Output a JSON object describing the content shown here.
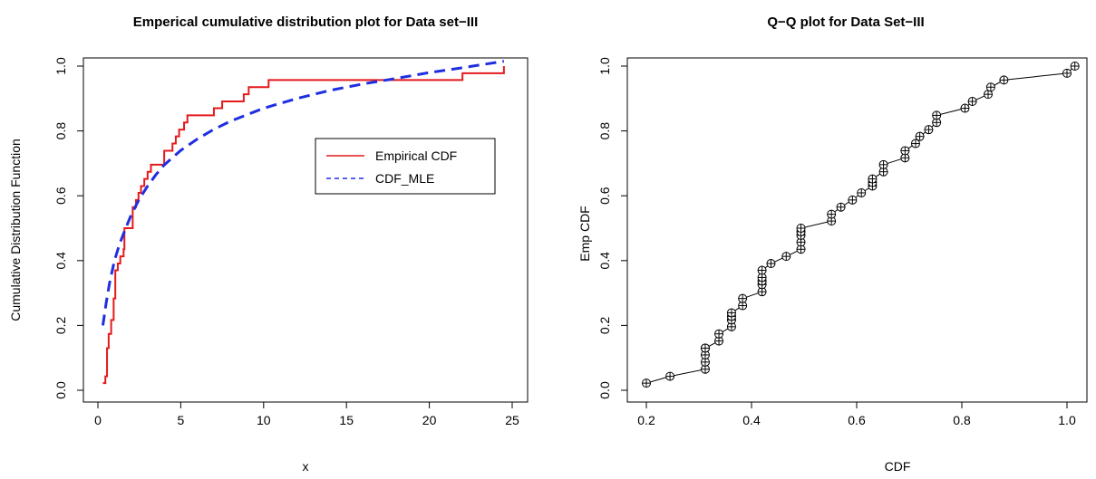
{
  "chart_data": [
    {
      "type": "line",
      "title": "Emperical cumulative distribution plot for Data set−III",
      "xlabel": "x",
      "ylabel": "Cumulative Distribution Function",
      "xlim": [
        0,
        25
      ],
      "ylim": [
        0,
        1
      ],
      "x_ticks": [
        0,
        5,
        10,
        15,
        20,
        25
      ],
      "x_tick_labels": [
        "0",
        "5",
        "10",
        "15",
        "20",
        "25"
      ],
      "y_ticks": [
        0,
        0.2,
        0.4,
        0.6,
        0.8,
        1
      ],
      "y_tick_labels": [
        "0.0",
        "0.2",
        "0.4",
        "0.6",
        "0.8",
        "1.0"
      ],
      "legend_position": "right",
      "grid": false,
      "series": [
        {
          "name": "Empirical CDF",
          "style": "step",
          "color": "#e41a1c",
          "x": [
            0.3,
            0.45,
            0.55,
            0.65,
            0.8,
            0.95,
            1.05,
            1.2,
            1.35,
            1.55,
            1.6,
            2.1,
            2.3,
            2.45,
            2.6,
            2.8,
            3.0,
            3.2,
            3.3,
            4.0,
            4.5,
            4.7,
            4.9,
            5.2,
            5.4,
            7.0,
            7.5,
            8.8,
            9.1,
            10.3,
            22.0,
            24.5
          ],
          "y": [
            0.022,
            0.043,
            0.13,
            0.174,
            0.217,
            0.283,
            0.37,
            0.391,
            0.413,
            0.435,
            0.5,
            0.565,
            0.587,
            0.609,
            0.63,
            0.652,
            0.674,
            0.696,
            0.696,
            0.739,
            0.761,
            0.783,
            0.804,
            0.826,
            0.848,
            0.87,
            0.891,
            0.913,
            0.935,
            0.957,
            0.978,
            1.0
          ]
        },
        {
          "name": "CDF_MLE",
          "style": "dashed",
          "color": "#1f2fe0",
          "x": [
            0.3,
            0.5,
            0.7,
            1.0,
            1.3,
            1.6,
            2.0,
            2.5,
            3.0,
            3.5,
            4.0,
            5.0,
            6.0,
            7.0,
            8.0,
            9.0,
            10.0,
            12.0,
            14.0,
            16.0,
            18.0,
            20.0,
            22.0,
            24.5
          ],
          "y": [
            0.2,
            0.27,
            0.33,
            0.4,
            0.45,
            0.49,
            0.54,
            0.59,
            0.63,
            0.665,
            0.695,
            0.74,
            0.775,
            0.805,
            0.83,
            0.85,
            0.87,
            0.9,
            0.925,
            0.945,
            0.962,
            0.98,
            0.995,
            1.015
          ]
        }
      ]
    },
    {
      "type": "scatter",
      "title": "Q−Q plot for Data Set−III",
      "xlabel": "CDF",
      "ylabel": "Emp CDF",
      "xlim": [
        0.2,
        1.0
      ],
      "ylim": [
        0,
        1
      ],
      "x_ticks": [
        0.2,
        0.4,
        0.6,
        0.8,
        1
      ],
      "x_tick_labels": [
        "0.2",
        "0.4",
        "0.6",
        "0.8",
        "1.0"
      ],
      "y_ticks": [
        0,
        0.2,
        0.4,
        0.6,
        0.8,
        1
      ],
      "y_tick_labels": [
        "0.0",
        "0.2",
        "0.4",
        "0.6",
        "0.8",
        "1.0"
      ],
      "marker": "circle-plus",
      "connected": true,
      "grid": false,
      "series": [
        {
          "color": "#000000",
          "x": [
            0.2,
            0.245,
            0.312,
            0.312,
            0.312,
            0.312,
            0.312,
            0.338,
            0.338,
            0.362,
            0.362,
            0.362,
            0.362,
            0.383,
            0.383,
            0.42,
            0.42,
            0.42,
            0.42,
            0.42,
            0.437,
            0.466,
            0.494,
            0.494,
            0.494,
            0.494,
            0.494,
            0.552,
            0.552,
            0.57,
            0.592,
            0.609,
            0.63,
            0.63,
            0.63,
            0.651,
            0.651,
            0.692,
            0.692,
            0.712,
            0.72,
            0.737,
            0.752,
            0.752,
            0.806,
            0.82,
            0.85,
            0.855,
            0.88,
            1.0,
            1.015
          ],
          "y": [
            0.022,
            0.043,
            0.065,
            0.087,
            0.109,
            0.13,
            0.13,
            0.152,
            0.174,
            0.196,
            0.217,
            0.228,
            0.239,
            0.261,
            0.283,
            0.304,
            0.326,
            0.337,
            0.348,
            0.37,
            0.391,
            0.413,
            0.435,
            0.457,
            0.478,
            0.489,
            0.5,
            0.522,
            0.543,
            0.565,
            0.587,
            0.609,
            0.63,
            0.641,
            0.652,
            0.674,
            0.696,
            0.717,
            0.739,
            0.761,
            0.783,
            0.804,
            0.826,
            0.848,
            0.87,
            0.891,
            0.913,
            0.935,
            0.957,
            0.978,
            1.0
          ]
        }
      ]
    }
  ]
}
